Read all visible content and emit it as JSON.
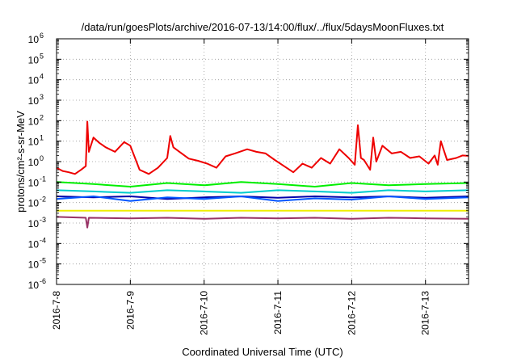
{
  "chart_data": {
    "type": "line",
    "title": "/data/run/goesPlots/archive/2016-07-13/14:00/flux/../flux/5daysMoonFluxes.txt",
    "xlabel": "Coordinated Universal Time (UTC)",
    "ylabel": "protons/cm²-s-sr-MeV",
    "yscale": "log",
    "ylim": [
      1e-06,
      1000000.0
    ],
    "xlim": [
      "2016-07-08T00:00",
      "2016-07-13T14:00"
    ],
    "grid": true,
    "x_ticks": [
      "2016-7-8",
      "2016-7-9",
      "2016-7-10",
      "2016-7-11",
      "2016-7-12",
      "2016-7-13"
    ],
    "y_ticks": [
      {
        "base": "10",
        "exp": "6"
      },
      {
        "base": "10",
        "exp": "5"
      },
      {
        "base": "10",
        "exp": "4"
      },
      {
        "base": "10",
        "exp": "3"
      },
      {
        "base": "10",
        "exp": "2"
      },
      {
        "base": "10",
        "exp": "1"
      },
      {
        "base": "10",
        "exp": "0"
      },
      {
        "base": "10",
        "exp": "-1"
      },
      {
        "base": "10",
        "exp": "-2"
      },
      {
        "base": "10",
        "exp": "-3"
      },
      {
        "base": "10",
        "exp": "-4"
      },
      {
        "base": "10",
        "exp": "-5"
      },
      {
        "base": "10",
        "exp": "-6"
      }
    ],
    "series": [
      {
        "color": "#ee0000",
        "x": [
          "2016-07-08T00:00",
          "2016-07-08T02:00",
          "2016-07-08T04:00",
          "2016-07-08T06:00",
          "2016-07-08T08:00",
          "2016-07-08T09:30",
          "2016-07-08T10:00",
          "2016-07-08T10:30",
          "2016-07-08T12:00",
          "2016-07-08T14:00",
          "2016-07-08T16:00",
          "2016-07-08T19:00",
          "2016-07-08T22:00",
          "2016-07-09T00:00",
          "2016-07-09T03:00",
          "2016-07-09T06:00",
          "2016-07-09T09:00",
          "2016-07-09T12:00",
          "2016-07-09T13:00",
          "2016-07-09T14:00",
          "2016-07-09T16:00",
          "2016-07-09T19:00",
          "2016-07-09T22:00",
          "2016-07-10T01:00",
          "2016-07-10T04:00",
          "2016-07-10T07:00",
          "2016-07-10T10:00",
          "2016-07-10T14:00",
          "2016-07-10T17:00",
          "2016-07-10T20:00",
          "2016-07-10T23:00",
          "2016-07-11T02:00",
          "2016-07-11T05:00",
          "2016-07-11T08:00",
          "2016-07-11T11:00",
          "2016-07-11T14:00",
          "2016-07-11T17:00",
          "2016-07-11T20:00",
          "2016-07-11T23:00",
          "2016-07-12T01:00",
          "2016-07-12T02:00",
          "2016-07-12T03:00",
          "2016-07-12T04:00",
          "2016-07-12T06:00",
          "2016-07-12T07:00",
          "2016-07-12T08:00",
          "2016-07-12T10:00",
          "2016-07-12T13:00",
          "2016-07-12T16:00",
          "2016-07-12T19:00",
          "2016-07-12T22:00",
          "2016-07-13T01:00",
          "2016-07-13T03:00",
          "2016-07-13T04:00",
          "2016-07-13T05:00",
          "2016-07-13T07:00",
          "2016-07-13T10:00",
          "2016-07-13T12:00",
          "2016-07-13T14:00"
        ],
        "values": [
          0.5,
          0.35,
          0.3,
          0.25,
          0.4,
          0.6,
          90,
          3,
          15,
          8,
          5,
          3,
          9,
          6,
          0.4,
          0.25,
          0.5,
          1.5,
          18,
          5,
          3,
          1.4,
          1.1,
          0.8,
          0.5,
          1.8,
          2.5,
          4,
          3,
          2.5,
          1.2,
          0.6,
          0.3,
          0.8,
          0.5,
          1.5,
          0.8,
          4,
          1.5,
          0.7,
          60,
          1.5,
          1.2,
          0.4,
          15,
          1,
          6,
          2.5,
          3,
          1.5,
          1.8,
          0.8,
          2,
          0.7,
          10,
          1.2,
          1.5,
          2,
          1.9
        ]
      },
      {
        "color": "#00ee00",
        "x": [
          "2016-07-08T00:00",
          "2016-07-08T12:00",
          "2016-07-09T00:00",
          "2016-07-09T12:00",
          "2016-07-10T00:00",
          "2016-07-10T12:00",
          "2016-07-11T00:00",
          "2016-07-11T12:00",
          "2016-07-12T00:00",
          "2016-07-12T12:00",
          "2016-07-13T00:00",
          "2016-07-13T14:00"
        ],
        "values": [
          0.1,
          0.08,
          0.06,
          0.09,
          0.07,
          0.1,
          0.08,
          0.06,
          0.09,
          0.07,
          0.08,
          0.09
        ]
      },
      {
        "color": "#00cccc",
        "x": [
          "2016-07-08T00:00",
          "2016-07-08T12:00",
          "2016-07-09T00:00",
          "2016-07-09T12:00",
          "2016-07-10T00:00",
          "2016-07-10T12:00",
          "2016-07-11T00:00",
          "2016-07-11T12:00",
          "2016-07-12T00:00",
          "2016-07-12T12:00",
          "2016-07-13T00:00",
          "2016-07-13T14:00"
        ],
        "values": [
          0.04,
          0.035,
          0.03,
          0.04,
          0.035,
          0.03,
          0.04,
          0.035,
          0.03,
          0.04,
          0.035,
          0.04
        ]
      },
      {
        "color": "#0055ff",
        "x": [
          "2016-07-08T00:00",
          "2016-07-08T12:00",
          "2016-07-09T00:00",
          "2016-07-09T12:00",
          "2016-07-10T00:00",
          "2016-07-10T12:00",
          "2016-07-11T00:00",
          "2016-07-11T12:00",
          "2016-07-12T00:00",
          "2016-07-12T12:00",
          "2016-07-13T00:00",
          "2016-07-13T14:00"
        ],
        "values": [
          0.015,
          0.02,
          0.012,
          0.018,
          0.015,
          0.02,
          0.012,
          0.016,
          0.014,
          0.02,
          0.015,
          0.018
        ]
      },
      {
        "color": "#0000aa",
        "x": [
          "2016-07-08T00:00",
          "2016-07-08T12:00",
          "2016-07-09T00:00",
          "2016-07-09T12:00",
          "2016-07-10T00:00",
          "2016-07-10T12:00",
          "2016-07-11T00:00",
          "2016-07-11T12:00",
          "2016-07-12T00:00",
          "2016-07-12T12:00",
          "2016-07-13T00:00",
          "2016-07-13T14:00"
        ],
        "values": [
          0.02,
          0.018,
          0.02,
          0.015,
          0.018,
          0.02,
          0.017,
          0.02,
          0.018,
          0.02,
          0.017,
          0.02
        ]
      },
      {
        "color": "#eeee00",
        "x": [
          "2016-07-08T00:00",
          "2016-07-08T12:00",
          "2016-07-09T00:00",
          "2016-07-09T12:00",
          "2016-07-10T00:00",
          "2016-07-10T12:00",
          "2016-07-11T00:00",
          "2016-07-11T12:00",
          "2016-07-12T00:00",
          "2016-07-12T12:00",
          "2016-07-13T00:00",
          "2016-07-13T14:00"
        ],
        "values": [
          0.004,
          0.004,
          0.004,
          0.004,
          0.004,
          0.004,
          0.004,
          0.004,
          0.004,
          0.004,
          0.004,
          0.004
        ]
      },
      {
        "color": "#993366",
        "x": [
          "2016-07-08T00:00",
          "2016-07-08T09:30",
          "2016-07-08T10:00",
          "2016-07-08T10:30",
          "2016-07-09T00:00",
          "2016-07-09T12:00",
          "2016-07-10T00:00",
          "2016-07-10T12:00",
          "2016-07-11T00:00",
          "2016-07-11T12:00",
          "2016-07-12T00:00",
          "2016-07-12T12:00",
          "2016-07-13T00:00",
          "2016-07-13T14:00"
        ],
        "values": [
          0.002,
          0.0018,
          0.0006,
          0.0018,
          0.0017,
          0.0018,
          0.0016,
          0.0018,
          0.0017,
          0.0018,
          0.0016,
          0.0018,
          0.0017,
          0.0016
        ]
      }
    ]
  }
}
